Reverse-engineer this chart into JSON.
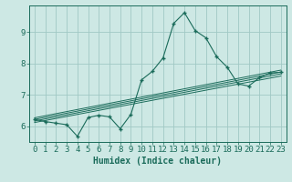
{
  "bg_color": "#cde8e4",
  "grid_color": "#a0c8c4",
  "line_color": "#1a6b5a",
  "marker_color": "#1a6b5a",
  "xlabel": "Humidex (Indice chaleur)",
  "xlim": [
    -0.5,
    23.5
  ],
  "ylim": [
    5.5,
    9.85
  ],
  "xticks": [
    0,
    1,
    2,
    3,
    4,
    5,
    6,
    7,
    8,
    9,
    10,
    11,
    12,
    13,
    14,
    15,
    16,
    17,
    18,
    19,
    20,
    21,
    22,
    23
  ],
  "yticks": [
    6,
    7,
    8,
    9
  ],
  "main_x": [
    0,
    1,
    2,
    3,
    4,
    5,
    6,
    7,
    8,
    9,
    10,
    11,
    12,
    13,
    14,
    15,
    16,
    17,
    18,
    19,
    20,
    21,
    22,
    23
  ],
  "main_y": [
    6.22,
    6.15,
    6.1,
    6.05,
    5.68,
    6.28,
    6.35,
    6.3,
    5.92,
    6.38,
    7.48,
    7.75,
    8.18,
    9.28,
    9.62,
    9.05,
    8.82,
    8.22,
    7.88,
    7.35,
    7.28,
    7.55,
    7.7,
    7.72
  ],
  "trend_lines": [
    {
      "x": [
        0,
        23
      ],
      "y": [
        6.12,
        7.6
      ]
    },
    {
      "x": [
        0,
        23
      ],
      "y": [
        6.17,
        7.67
      ]
    },
    {
      "x": [
        0,
        23
      ],
      "y": [
        6.22,
        7.73
      ]
    },
    {
      "x": [
        0,
        23
      ],
      "y": [
        6.27,
        7.79
      ]
    }
  ],
  "font_family": "monospace",
  "font_size": 6.5,
  "xlabel_fontsize": 7.0
}
